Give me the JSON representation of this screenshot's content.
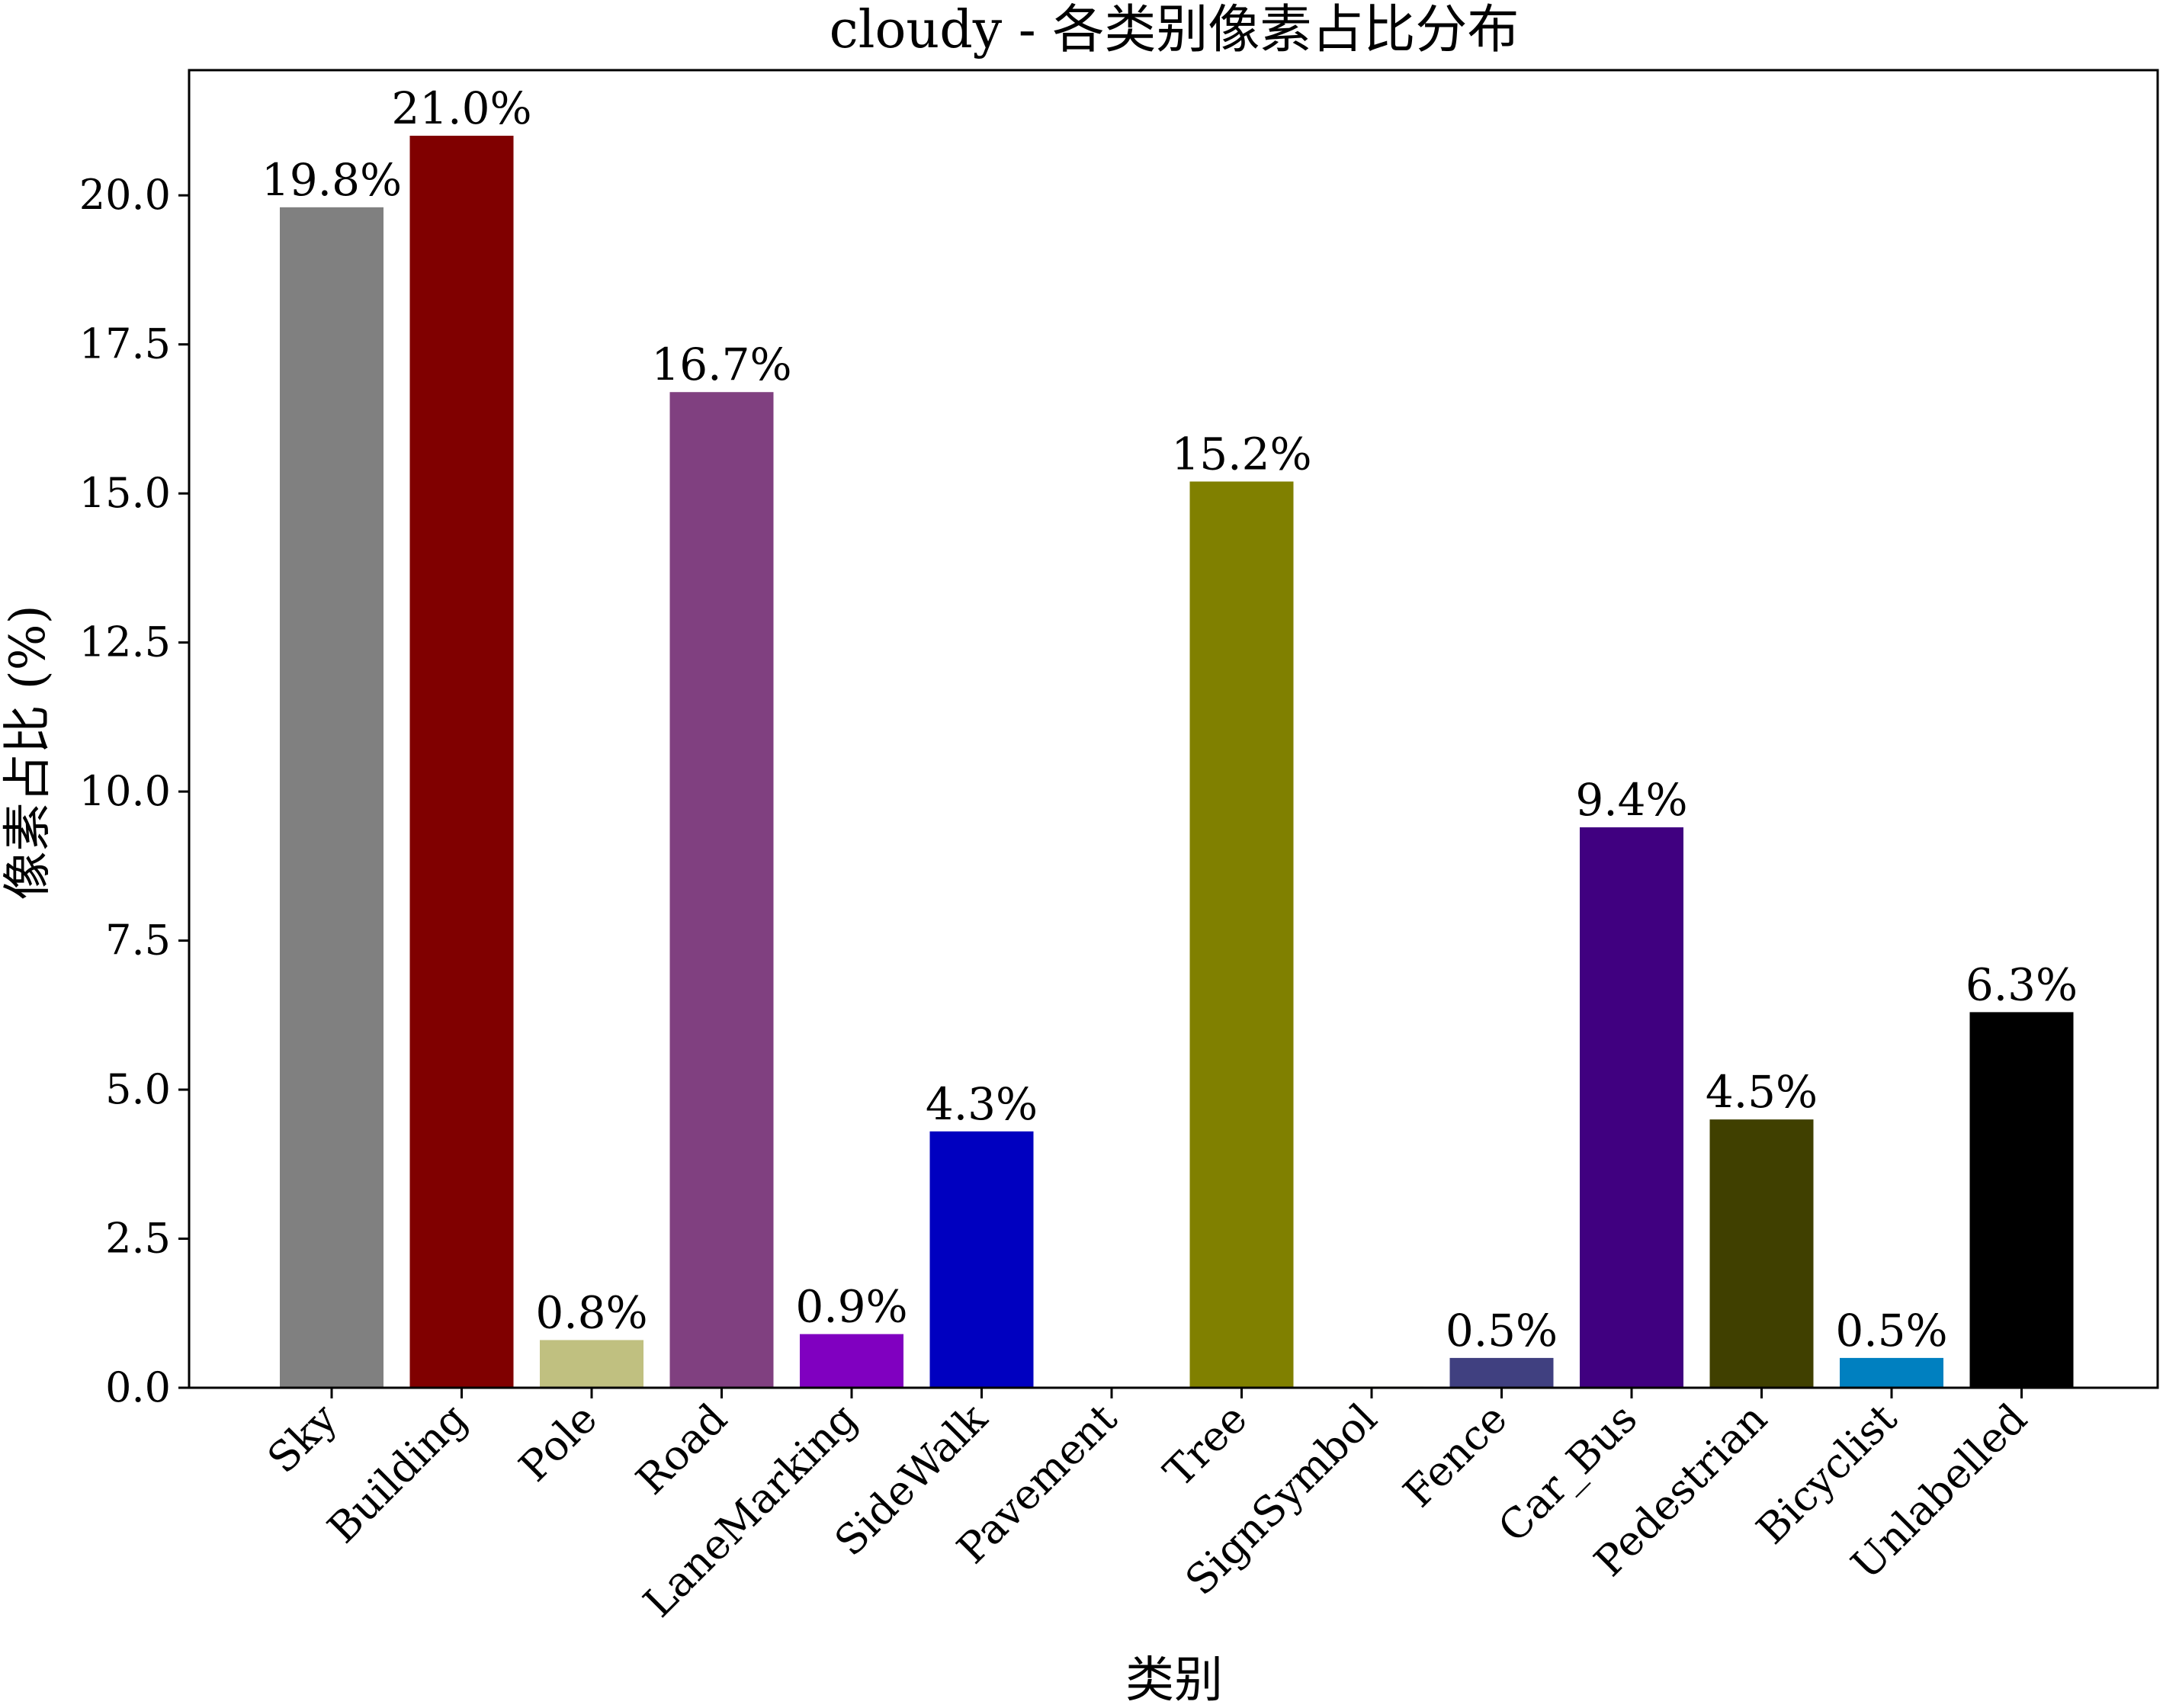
{
  "chart_data": {
    "type": "bar",
    "title": "cloudy - 各类别像素占比分布",
    "xlabel": "类别",
    "ylabel": "像素占比 (%)",
    "ylim": [
      0,
      22.1
    ],
    "yticks": [
      "0.0",
      "2.5",
      "5.0",
      "7.5",
      "10.0",
      "12.5",
      "15.0",
      "17.5",
      "20.0"
    ],
    "grid": false,
    "categories": [
      "Sky",
      "Building",
      "Pole",
      "Road",
      "LaneMarking",
      "SideWalk",
      "Pavement",
      "Tree",
      "SignSymbol",
      "Fence",
      "Car_Bus",
      "Pedestrian",
      "Bicyclist",
      "Unlabelled"
    ],
    "values": [
      19.8,
      21.0,
      0.8,
      16.7,
      0.9,
      4.3,
      0.0,
      15.2,
      0.02,
      0.5,
      9.4,
      4.5,
      0.5,
      6.3
    ],
    "data_labels": [
      "19.8%",
      "21.0%",
      "0.8%",
      "16.7%",
      "0.9%",
      "4.3%",
      "",
      "15.2%",
      "",
      "0.5%",
      "9.4%",
      "4.5%",
      "0.5%",
      "6.3%"
    ],
    "colors": [
      "#808080",
      "#800000",
      "#c0c080",
      "#804080",
      "#8000c0",
      "#0000c0",
      "#ffffff",
      "#808000",
      "#c0c080",
      "#404080",
      "#400080",
      "#404000",
      "#0080c0",
      "#000000"
    ]
  }
}
